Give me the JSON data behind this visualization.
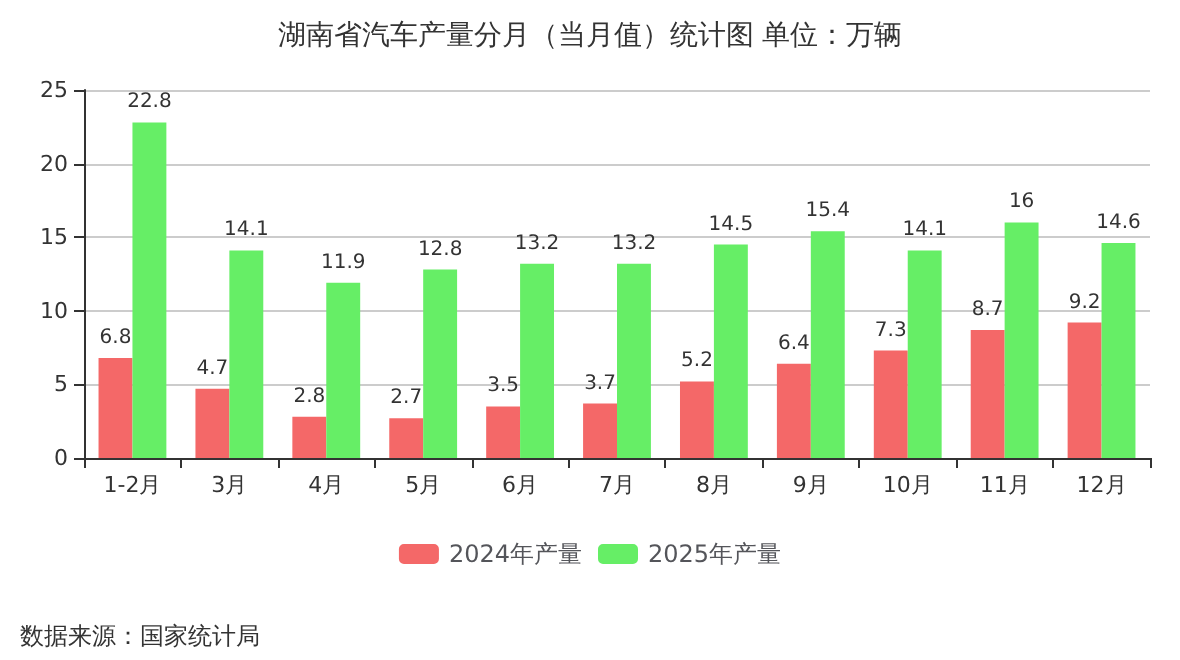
{
  "chart_data": {
    "type": "bar",
    "title": "湖南省汽车产量分月（当月值）统计图 单位：万辆",
    "categories": [
      "1-2月",
      "3月",
      "4月",
      "5月",
      "6月",
      "7月",
      "8月",
      "9月",
      "10月",
      "11月",
      "12月"
    ],
    "series": [
      {
        "name": "2024年产量",
        "color": "#f46868",
        "values": [
          6.8,
          4.7,
          2.8,
          2.7,
          3.5,
          3.7,
          5.2,
          6.4,
          7.3,
          8.7,
          9.2
        ]
      },
      {
        "name": "2025年产量",
        "color": "#66ee66",
        "values": [
          22.8,
          14.1,
          11.9,
          12.8,
          13.2,
          13.2,
          14.5,
          15.4,
          14.1,
          16,
          14.6
        ]
      }
    ],
    "ylim": [
      0,
      25
    ],
    "yticks": [
      0,
      5,
      10,
      15,
      20,
      25
    ],
    "grid": "y",
    "legend": "bottom",
    "data_labels": true,
    "annotations": [
      "数据来源：国家统计局"
    ]
  }
}
